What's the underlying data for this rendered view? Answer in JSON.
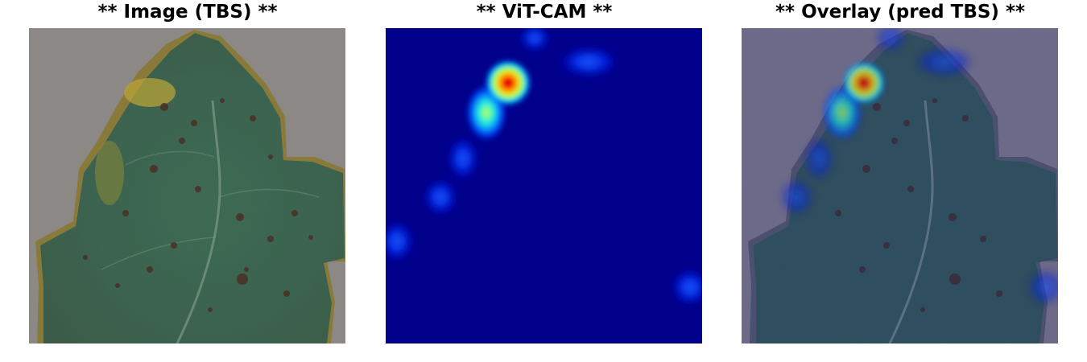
{
  "panels": [
    {
      "title": "** Image (TBS) **",
      "content": "tomato-leaf-photo"
    },
    {
      "title": "** ViT-CAM **",
      "content": "attention-heatmap"
    },
    {
      "title": "** Overlay (pred TBS) **",
      "content": "heatmap-over-leaf"
    }
  ],
  "colors": {
    "leaf": "#3f6552",
    "background": "#8c8886",
    "heatmap_low": "#00008b",
    "heatmap_high": "#ff0000"
  }
}
